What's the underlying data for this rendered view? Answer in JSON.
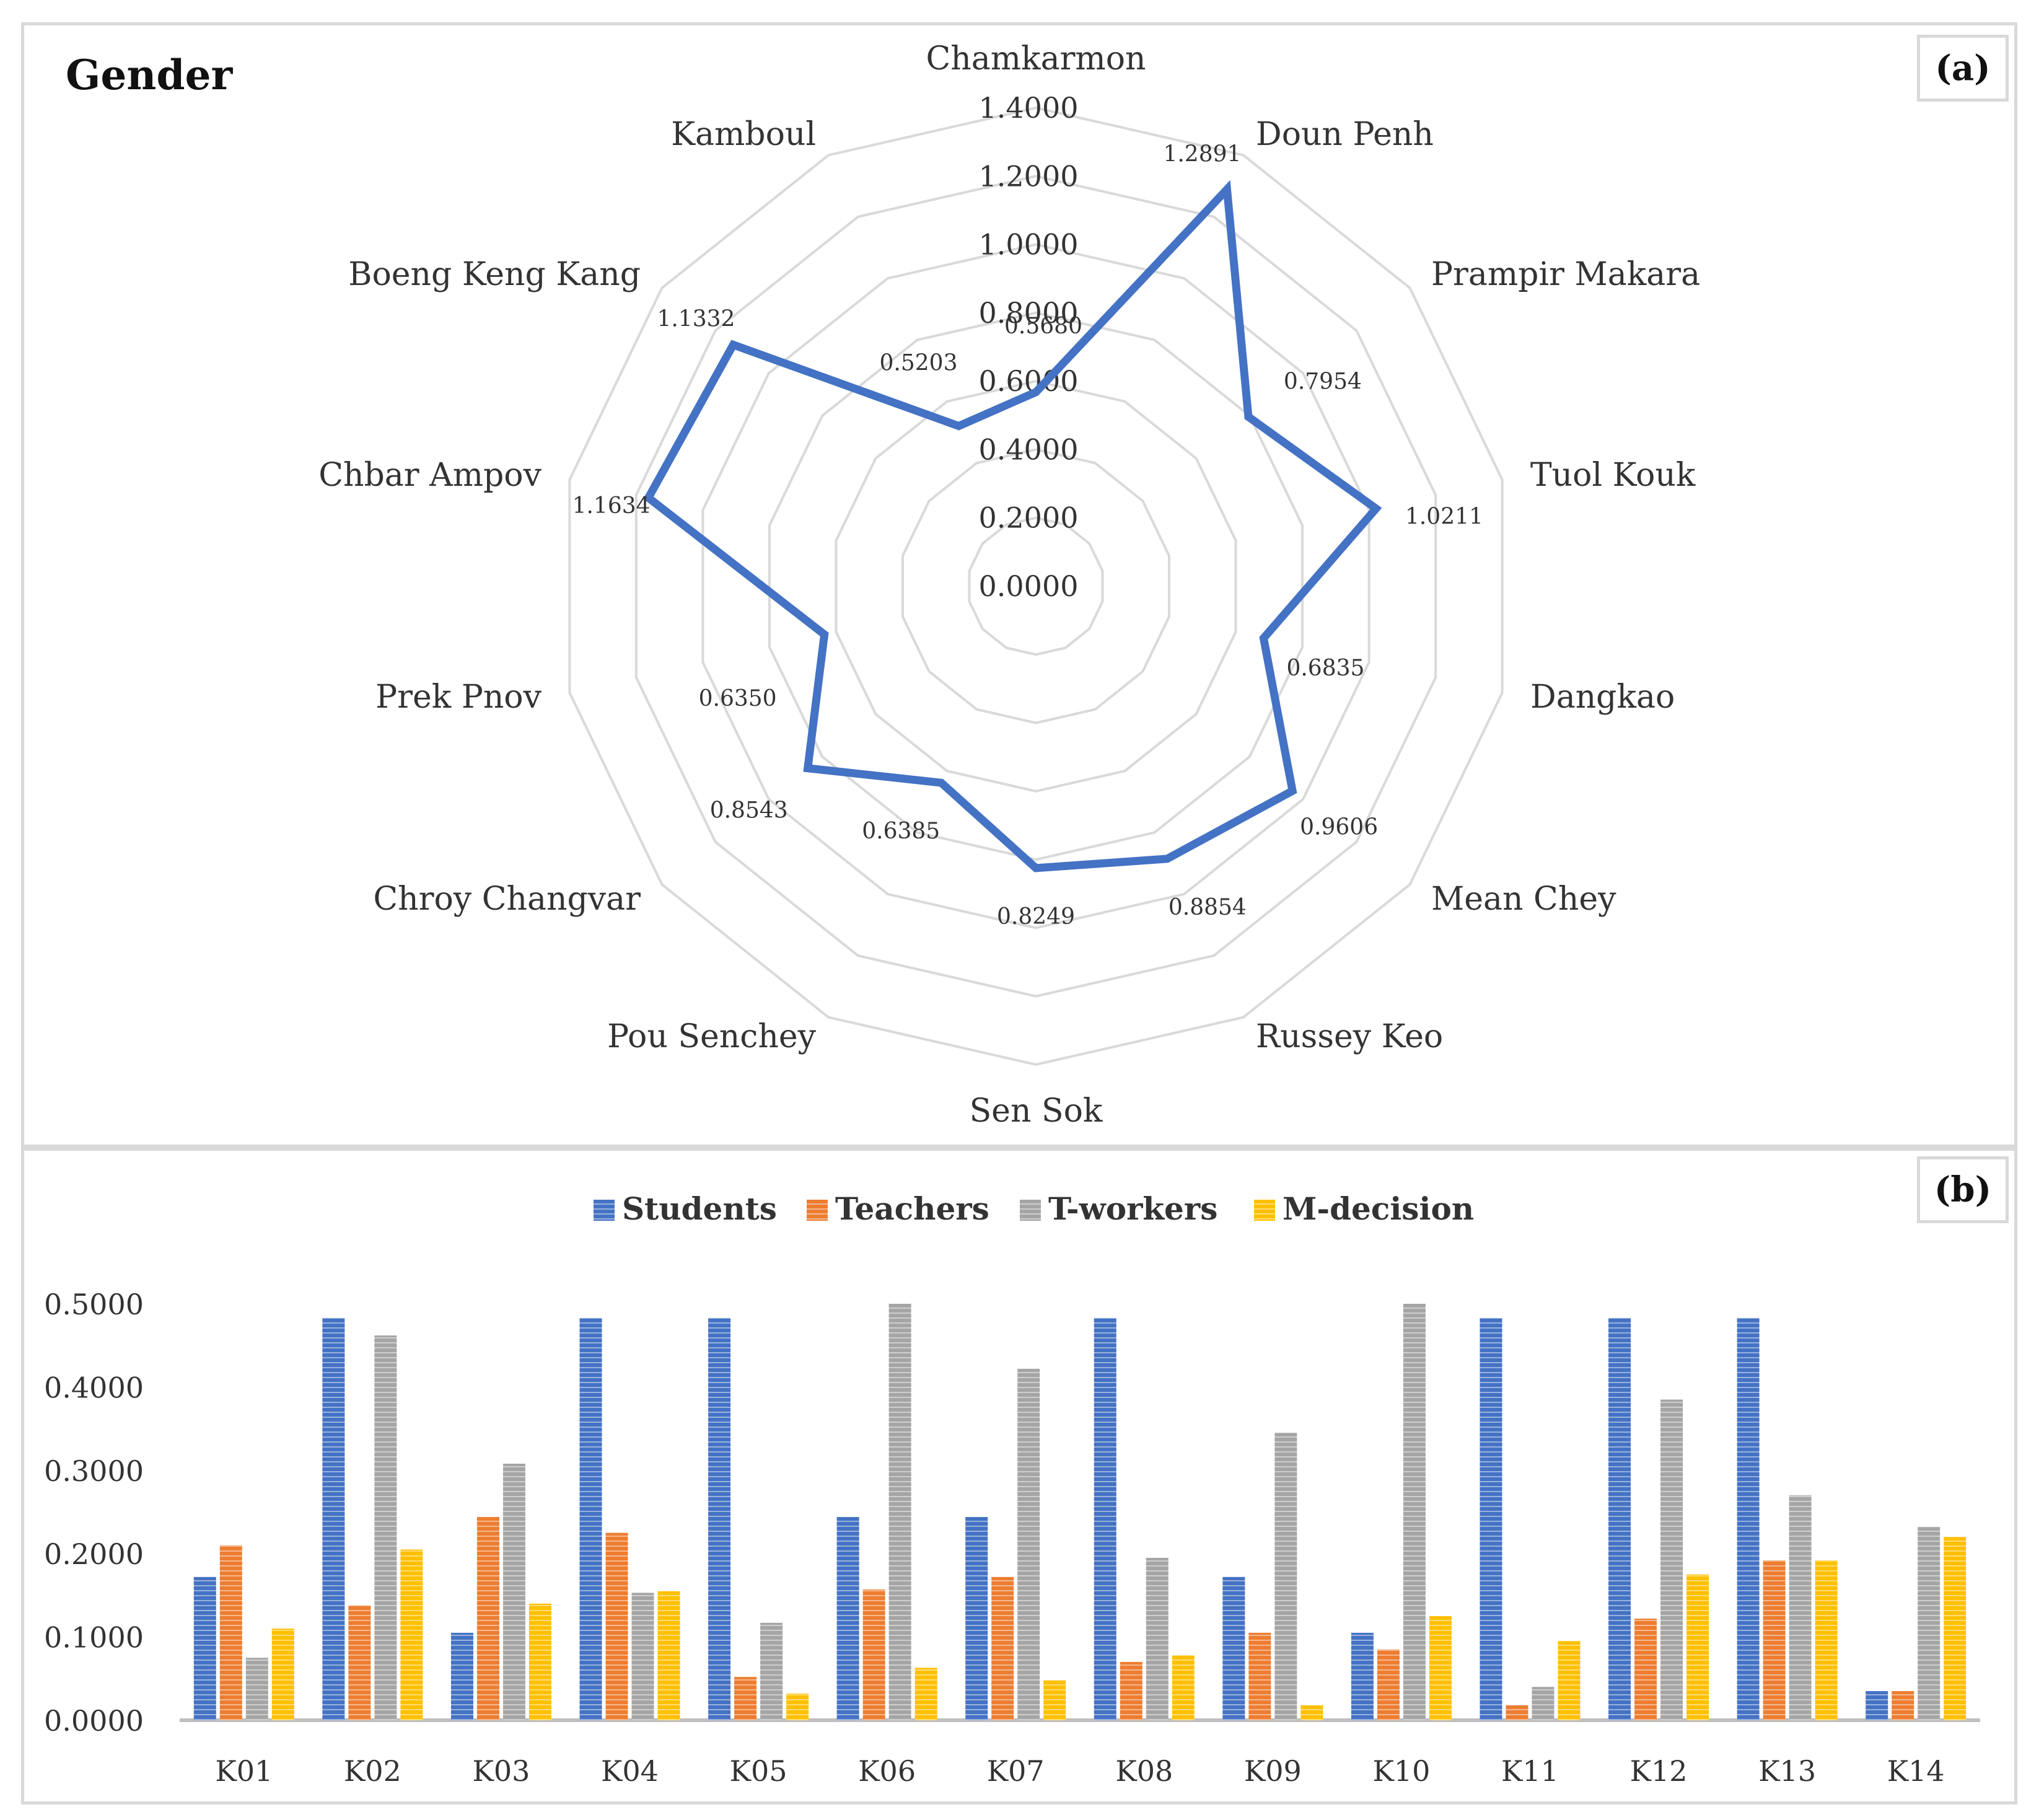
{
  "panel_a": {
    "title": "Gender",
    "label": "(a)"
  },
  "panel_b": {
    "label": "(b)"
  },
  "colors": {
    "radar_line": "#4472c4",
    "grid": "#d9d9d9",
    "students": "#4472c4",
    "teachers": "#ed7d31",
    "t_workers": "#a5a5a5",
    "m_decision": "#ffc000",
    "axis": "#bfbfbf"
  },
  "chart_data": [
    {
      "type": "radar",
      "title": "Gender",
      "categories": [
        "Chamkarmon",
        "Doun Penh",
        "Prampir Makara",
        "Tuol Kouk",
        "Dangkao",
        "Mean Chey",
        "Russey Keo",
        "Sen Sok",
        "Pou Senchey",
        "Chroy Changvar",
        "Prek Pnov",
        "Chbar Ampov",
        "Boeng Keng Kang",
        "Kamboul"
      ],
      "values": [
        0.568,
        1.2891,
        0.7954,
        1.0211,
        0.6835,
        0.9606,
        0.8854,
        0.8249,
        0.6385,
        0.8543,
        0.635,
        1.1634,
        1.1332,
        0.5203
      ],
      "value_labels": [
        "0.5680",
        "1.2891",
        "0.7954",
        "1.0211",
        "0.6835",
        "0.9606",
        "0.8854",
        "0.8249",
        "0.6385",
        "0.8543",
        "0.6350",
        "1.1634",
        "1.1332",
        "0.5203"
      ],
      "range": [
        0,
        1.4
      ],
      "tick_labels": [
        "0.0000",
        "0.2000",
        "0.4000",
        "0.6000",
        "0.8000",
        "1.0000",
        "1.2000",
        "1.4000"
      ]
    },
    {
      "type": "bar",
      "categories": [
        "K01",
        "K02",
        "K03",
        "K04",
        "K05",
        "K06",
        "K07",
        "K08",
        "K09",
        "K10",
        "K11",
        "K12",
        "K13",
        "K14"
      ],
      "series": [
        {
          "name": "Students",
          "values": [
            0.172,
            0.483,
            0.105,
            0.483,
            0.483,
            0.244,
            0.244,
            0.483,
            0.172,
            0.105,
            0.483,
            0.483,
            0.483,
            0.035
          ]
        },
        {
          "name": "Teachers",
          "values": [
            0.21,
            0.138,
            0.244,
            0.225,
            0.052,
            0.157,
            0.172,
            0.07,
            0.105,
            0.085,
            0.018,
            0.122,
            0.192,
            0.035
          ]
        },
        {
          "name": "T-workers",
          "values": [
            0.075,
            0.462,
            0.308,
            0.153,
            0.117,
            0.5,
            0.422,
            0.195,
            0.345,
            0.5,
            0.04,
            0.385,
            0.27,
            0.232
          ]
        },
        {
          "name": "M-decision",
          "values": [
            0.11,
            0.205,
            0.14,
            0.155,
            0.032,
            0.063,
            0.048,
            0.078,
            0.018,
            0.125,
            0.095,
            0.175,
            0.192,
            0.22
          ]
        }
      ],
      "legend_position": "top-center",
      "ylim": [
        0,
        0.5
      ],
      "yticks": [
        "0.0000",
        "0.1000",
        "0.2000",
        "0.3000",
        "0.4000",
        "0.5000"
      ],
      "grid": false
    }
  ]
}
